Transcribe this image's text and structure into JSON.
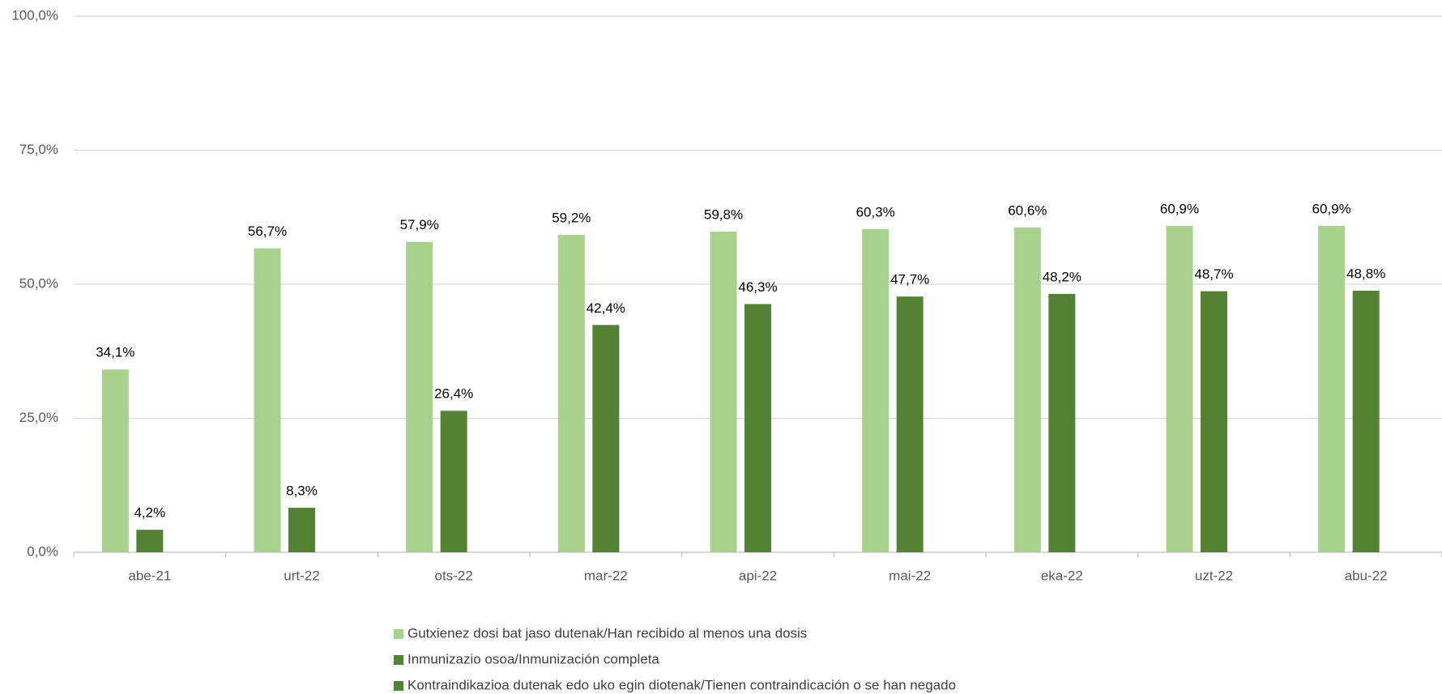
{
  "chart_data": {
    "type": "bar",
    "categories": [
      "abe-21",
      "urt-22",
      "ots-22",
      "mar-22",
      "api-22",
      "mai-22",
      "eka-22",
      "uzt-22",
      "abu-22"
    ],
    "series": [
      {
        "name": "Gutxienez dosi bat jaso dutenak/Han recibido al menos una dosis",
        "color": "#a9d18e",
        "values": [
          34.1,
          56.7,
          57.9,
          59.2,
          59.8,
          60.3,
          60.6,
          60.9,
          60.9
        ],
        "value_labels": [
          "34,1%",
          "56,7%",
          "57,9%",
          "59,2%",
          "59,8%",
          "60,3%",
          "60,6%",
          "60,9%",
          "60,9%"
        ]
      },
      {
        "name": "Inmunizazio osoa/Inmunización completa",
        "color": "#548235",
        "values": [
          4.2,
          8.3,
          26.4,
          42.4,
          46.3,
          47.7,
          48.2,
          48.7,
          48.8
        ],
        "value_labels": [
          "4,2%",
          "8,3%",
          "26,4%",
          "42,4%",
          "46,3%",
          "47,7%",
          "48,2%",
          "48,7%",
          "48,8%"
        ]
      },
      {
        "name": "Kontraindikazioa dutenak edo uko egin diotenak/Tienen contraindicación o se han negado",
        "color": "#548235",
        "values": [
          null,
          null,
          null,
          null,
          null,
          null,
          null,
          null,
          null
        ]
      }
    ],
    "ylim": [
      0,
      100
    ],
    "yticks": [
      {
        "value": 0,
        "label": "0,0%"
      },
      {
        "value": 25,
        "label": "25,0%"
      },
      {
        "value": 50,
        "label": "50,0%"
      },
      {
        "value": 75,
        "label": "75,0%"
      },
      {
        "value": 100,
        "label": "100,0%"
      }
    ],
    "grid": true,
    "legend": "bottom"
  }
}
